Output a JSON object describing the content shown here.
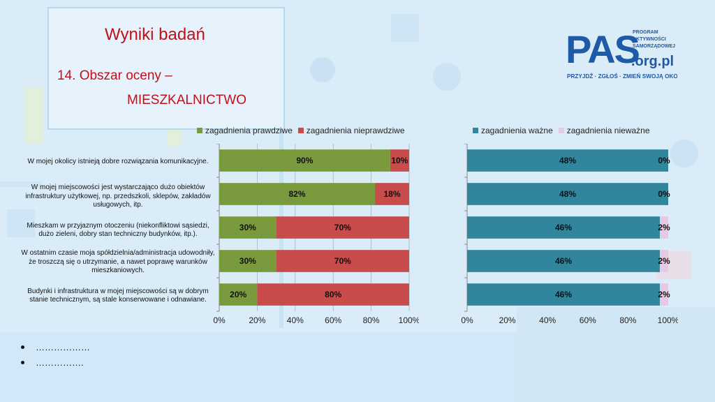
{
  "header": {
    "title": "Wyniki badań",
    "subtitle_line1": "14. Obszar oceny –",
    "subtitle_line2": "MIESZKALNICTWO"
  },
  "logo": {
    "main": "PAS",
    "domain": ".org.pl",
    "tag1": "PROGRAM",
    "tag2": "AKTYWNOŚCI",
    "tag3": "SAMORZĄDOWEJ",
    "slogan": "PRZYJDŹ · ZGŁOŚ · ZMIEŃ SWOJĄ OKOLICĘ"
  },
  "categories": [
    "W mojej okolicy istnieją dobre rozwiązania komunikacyjne.",
    "W mojej miejscowości jest wystarczająco dużo obiektów infrastruktury użytkowej, np. przedszkoli, sklepów, zakładów usługowych, itp.",
    "Mieszkam w przyjaznym otoczeniu (niekonfliktowi sąsiedzi, dużo zieleni, dobry stan techniczny budynków, itp.).",
    "W ostatnim czasie moja spółdzielnia/administracja udowodniły, że troszczą się o utrzymanie, a nawet poprawę warunków mieszkaniowych.",
    "Budynki i infrastruktura w mojej miejscowości są w dobrym stanie technicznym, są stale konserwowane i odnawiane."
  ],
  "bullets": [
    "………………",
    "……………."
  ],
  "chart_data": [
    {
      "type": "bar",
      "orientation": "horizontal",
      "stacked": "percent",
      "legend_position": "top",
      "grid": true,
      "xlim": [
        0,
        100
      ],
      "x_ticks": [
        "0%",
        "20%",
        "40%",
        "60%",
        "80%",
        "100%"
      ],
      "series": [
        {
          "name": "zagadnienia prawdziwe",
          "color": "#7a9a3e",
          "values": [
            90,
            82,
            30,
            30,
            20
          ],
          "labels": [
            "90%",
            "82%",
            "30%",
            "30%",
            "20%"
          ]
        },
        {
          "name": "zagadnienia nieprawdziwe",
          "color": "#c94c4c",
          "values": [
            10,
            18,
            70,
            70,
            80
          ],
          "labels": [
            "10%",
            "18%",
            "70%",
            "70%",
            "80%"
          ]
        }
      ]
    },
    {
      "type": "bar",
      "orientation": "horizontal",
      "stacked": "percent",
      "legend_position": "top",
      "grid": false,
      "xlim": [
        0,
        100
      ],
      "x_ticks": [
        "0%",
        "20%",
        "40%",
        "60%",
        "80%",
        "100%"
      ],
      "series": [
        {
          "name": "zagadnienia ważne",
          "color": "#31859c",
          "values": [
            48,
            48,
            46,
            46,
            46
          ],
          "labels": [
            "48%",
            "48%",
            "46%",
            "46%",
            "46%"
          ]
        },
        {
          "name": "zagadnienia nieważne",
          "color": "#e6c9e3",
          "values": [
            0,
            0,
            2,
            2,
            2
          ],
          "labels": [
            "0%",
            "0%",
            "2%",
            "2%",
            "2%"
          ]
        }
      ]
    }
  ]
}
